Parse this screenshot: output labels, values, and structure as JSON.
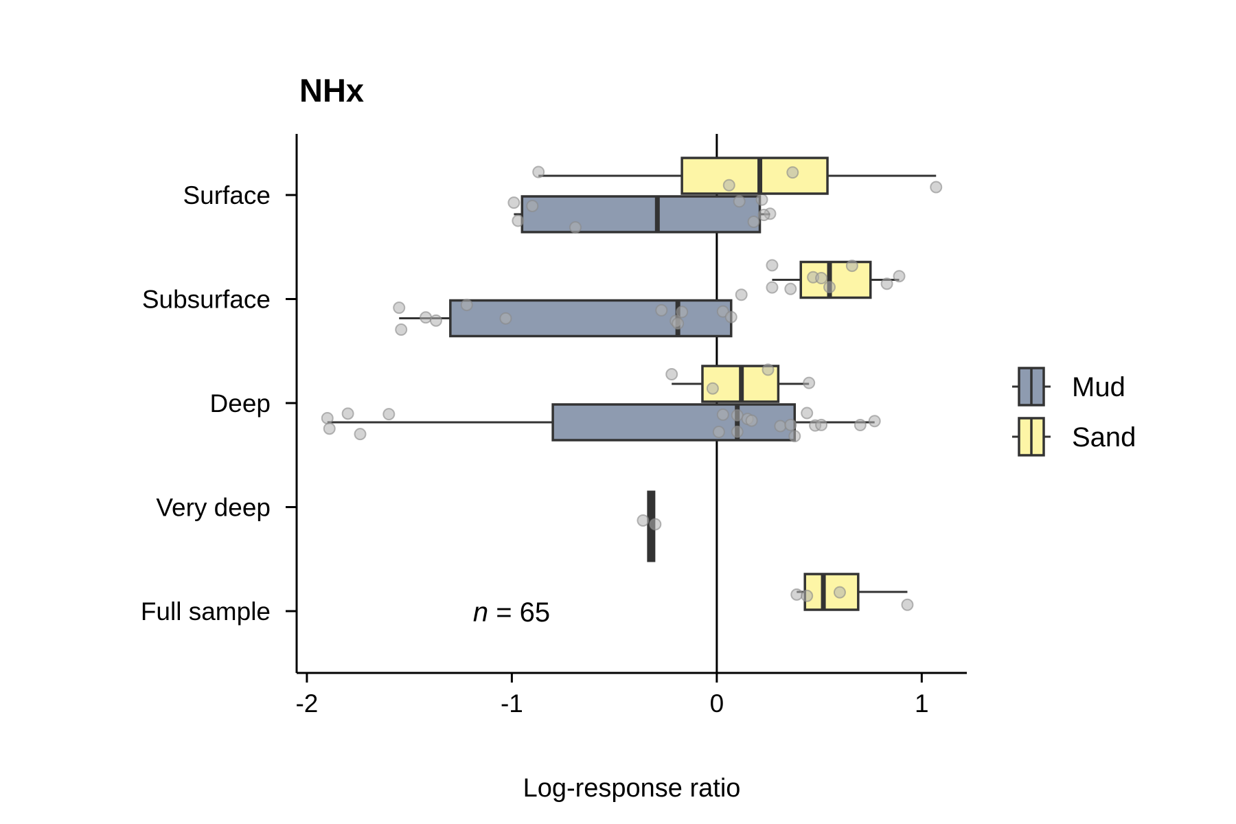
{
  "chart_data": {
    "type": "box",
    "title": "NHx",
    "xlabel": "Log-response ratio",
    "ylabel": "",
    "xlim": [
      -2.05,
      1.22
    ],
    "xticks": [
      -2,
      -1,
      0,
      1
    ],
    "xtick_labels": [
      "-2",
      "-1",
      "0",
      "1"
    ],
    "categories": [
      "Surface",
      "Subsurface",
      "Deep",
      "Very deep",
      "Full sample"
    ],
    "reference_line": 0,
    "annotation": {
      "italic": "n",
      "rest": " = 65"
    },
    "legend": {
      "position": "right",
      "entries": [
        "Mud",
        "Sand"
      ]
    },
    "colors": {
      "Mud": "#8e9bb0",
      "Sand": "#fdf5a6",
      "outline": "#333333",
      "point": "#b0b0b0"
    },
    "series": [
      {
        "name": "Mud",
        "boxes": [
          {
            "category": "Surface",
            "whisker_low": -0.99,
            "q1": -0.95,
            "median": -0.29,
            "q3": 0.21,
            "whisker_high": 0.26,
            "points": [
              -0.99,
              -0.97,
              -0.9,
              -0.69,
              0.11,
              0.18,
              0.22,
              0.26,
              0.23
            ]
          },
          {
            "category": "Subsurface",
            "whisker_low": -1.55,
            "q1": -1.3,
            "median": -0.19,
            "q3": 0.07,
            "whisker_high": 0.07,
            "points": [
              -1.55,
              -1.54,
              -1.42,
              -1.37,
              -1.22,
              -1.03,
              -0.27,
              -0.2,
              -0.17,
              -0.19,
              0.03,
              0.07
            ]
          },
          {
            "category": "Deep",
            "whisker_low": -1.9,
            "q1": -0.8,
            "median": 0.1,
            "q3": 0.38,
            "whisker_high": 0.77,
            "points": [
              -1.9,
              -1.89,
              -1.8,
              -1.74,
              -1.6,
              0.01,
              0.03,
              0.1,
              0.1,
              0.15,
              0.17,
              0.31,
              0.36,
              0.38,
              0.44,
              0.48,
              0.51,
              0.7,
              0.77
            ]
          },
          {
            "category": "Very deep",
            "whisker_low": -0.32,
            "q1": -0.32,
            "median": -0.32,
            "q3": -0.32,
            "whisker_high": -0.32,
            "points": [
              -0.36,
              -0.3
            ]
          }
        ]
      },
      {
        "name": "Sand",
        "boxes": [
          {
            "category": "Surface",
            "whisker_low": -0.87,
            "q1": -0.17,
            "median": 0.21,
            "q3": 0.54,
            "whisker_high": 1.07,
            "points": [
              -0.87,
              0.06,
              0.37,
              1.07
            ]
          },
          {
            "category": "Subsurface",
            "whisker_low": 0.27,
            "q1": 0.41,
            "median": 0.55,
            "q3": 0.75,
            "whisker_high": 0.89,
            "points": [
              0.27,
              0.36,
              0.47,
              0.55,
              0.66,
              0.83,
              0.89,
              0.27,
              0.51,
              0.12
            ]
          },
          {
            "category": "Deep",
            "whisker_low": -0.22,
            "q1": -0.07,
            "median": 0.12,
            "q3": 0.3,
            "whisker_high": 0.45,
            "points": [
              -0.22,
              -0.02,
              0.25,
              0.45
            ]
          },
          {
            "category": "Full sample",
            "whisker_low": 0.39,
            "q1": 0.43,
            "median": 0.52,
            "q3": 0.69,
            "whisker_high": 0.93,
            "points": [
              0.39,
              0.44,
              0.6,
              0.93
            ]
          }
        ]
      }
    ]
  }
}
